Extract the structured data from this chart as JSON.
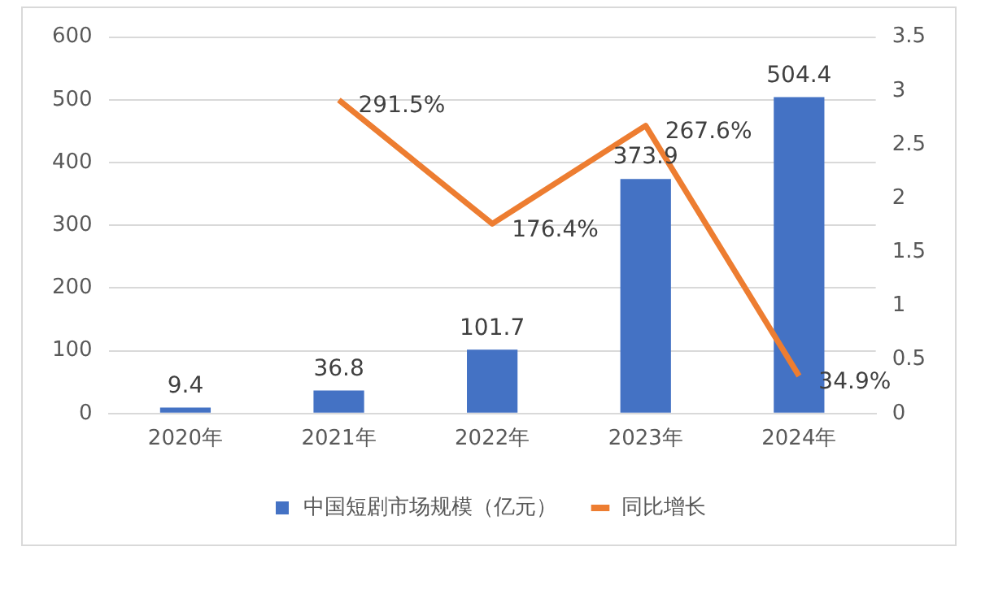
{
  "chart_data": {
    "type": "bar",
    "categories": [
      "2020年",
      "2021年",
      "2022年",
      "2023年",
      "2024年"
    ],
    "series": [
      {
        "name": "中国短剧市场规模（亿元）",
        "color": "#4472c4",
        "values": [
          9.4,
          36.8,
          101.7,
          373.9,
          504.4
        ]
      },
      {
        "name": "同比增长",
        "type": "line",
        "axis": "y2",
        "color": "#ed7d31",
        "values": [
          null,
          2.915,
          1.764,
          2.676,
          0.349
        ],
        "value_labels": [
          null,
          "291.5%",
          "176.4%",
          "267.6%",
          "34.9%"
        ]
      }
    ],
    "ylim": [
      0,
      600
    ],
    "yticks": [
      0,
      100,
      200,
      300,
      400,
      500,
      600
    ],
    "y2lim": [
      0,
      3.5
    ],
    "y2ticks": [
      0,
      0.5,
      1,
      1.5,
      2,
      2.5,
      3,
      3.5
    ],
    "data_labels": true,
    "grid": "y",
    "legend": "bottom",
    "marker": "none"
  }
}
